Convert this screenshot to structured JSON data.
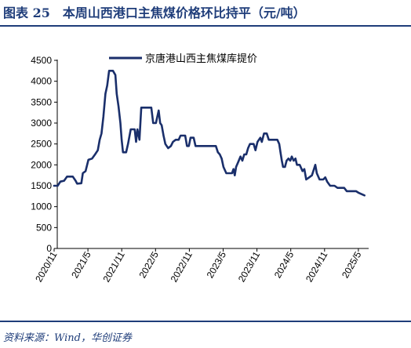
{
  "header": {
    "title": "图表 25　本周山西港口主焦煤价格环比持平（元/吨）"
  },
  "footer": {
    "source": "资料来源：Wind，华创证券"
  },
  "chart_data": {
    "type": "line",
    "legend_position": "top",
    "grid": false,
    "ylim": [
      0,
      4500
    ],
    "yticks": [
      "0",
      "500",
      "1000",
      "1500",
      "2000",
      "2500",
      "3000",
      "3500",
      "4000",
      "4500"
    ],
    "xticks": [
      "2020/11",
      "2021/5",
      "2021/11",
      "2022/5",
      "2022/11",
      "2023/5",
      "2023/11",
      "2024/5",
      "2024/11",
      "2025/5"
    ],
    "xlim": [
      "2020-11-01",
      "2025-06-15"
    ],
    "color": "#1a2f6b",
    "series": [
      {
        "name": "京唐港山西主焦煤库提价",
        "points": [
          [
            "2020-11-01",
            1500
          ],
          [
            "2020-11-20",
            1500
          ],
          [
            "2020-12-05",
            1600
          ],
          [
            "2020-12-25",
            1620
          ],
          [
            "2021-01-10",
            1720
          ],
          [
            "2021-02-10",
            1720
          ],
          [
            "2021-02-25",
            1620
          ],
          [
            "2021-03-05",
            1550
          ],
          [
            "2021-03-28",
            1560
          ],
          [
            "2021-04-05",
            1800
          ],
          [
            "2021-04-20",
            1850
          ],
          [
            "2021-05-05",
            2120
          ],
          [
            "2021-05-25",
            2150
          ],
          [
            "2021-06-10",
            2250
          ],
          [
            "2021-06-25",
            2350
          ],
          [
            "2021-07-05",
            2600
          ],
          [
            "2021-07-15",
            2750
          ],
          [
            "2021-07-25",
            3150
          ],
          [
            "2021-08-05",
            3700
          ],
          [
            "2021-08-15",
            3900
          ],
          [
            "2021-08-25",
            4250
          ],
          [
            "2021-09-15",
            4250
          ],
          [
            "2021-09-28",
            4150
          ],
          [
            "2021-10-05",
            3700
          ],
          [
            "2021-10-15",
            3400
          ],
          [
            "2021-10-25",
            3000
          ],
          [
            "2021-11-01",
            2600
          ],
          [
            "2021-11-08",
            2300
          ],
          [
            "2021-11-25",
            2300
          ],
          [
            "2021-12-05",
            2500
          ],
          [
            "2021-12-20",
            2850
          ],
          [
            "2022-01-10",
            2850
          ],
          [
            "2022-01-18",
            2550
          ],
          [
            "2022-01-25",
            2850
          ],
          [
            "2022-02-05",
            2600
          ],
          [
            "2022-02-15",
            3370
          ],
          [
            "2022-04-10",
            3370
          ],
          [
            "2022-04-20",
            3000
          ],
          [
            "2022-05-05",
            3000
          ],
          [
            "2022-05-20",
            3300
          ],
          [
            "2022-05-28",
            3000
          ],
          [
            "2022-06-05",
            2950
          ],
          [
            "2022-06-15",
            2700
          ],
          [
            "2022-06-25",
            2500
          ],
          [
            "2022-07-10",
            2400
          ],
          [
            "2022-07-25",
            2450
          ],
          [
            "2022-08-05",
            2550
          ],
          [
            "2022-08-20",
            2600
          ],
          [
            "2022-09-05",
            2600
          ],
          [
            "2022-09-15",
            2700
          ],
          [
            "2022-10-10",
            2700
          ],
          [
            "2022-10-20",
            2450
          ],
          [
            "2022-10-30",
            2450
          ],
          [
            "2022-11-08",
            2650
          ],
          [
            "2022-11-25",
            2650
          ],
          [
            "2022-12-05",
            2450
          ],
          [
            "2023-03-25",
            2450
          ],
          [
            "2023-04-05",
            2300
          ],
          [
            "2023-04-15",
            2250
          ],
          [
            "2023-04-25",
            2150
          ],
          [
            "2023-05-05",
            1950
          ],
          [
            "2023-05-20",
            1800
          ],
          [
            "2023-06-20",
            1800
          ],
          [
            "2023-06-28",
            1900
          ],
          [
            "2023-07-05",
            1750
          ],
          [
            "2023-07-12",
            1950
          ],
          [
            "2023-07-22",
            2050
          ],
          [
            "2023-08-05",
            2200
          ],
          [
            "2023-08-15",
            2100
          ],
          [
            "2023-08-25",
            2250
          ],
          [
            "2023-09-05",
            2250
          ],
          [
            "2023-09-15",
            2400
          ],
          [
            "2023-09-25",
            2500
          ],
          [
            "2023-10-15",
            2500
          ],
          [
            "2023-10-25",
            2350
          ],
          [
            "2023-11-05",
            2550
          ],
          [
            "2023-11-20",
            2650
          ],
          [
            "2023-11-28",
            2550
          ],
          [
            "2023-12-10",
            2750
          ],
          [
            "2023-12-25",
            2750
          ],
          [
            "2024-01-05",
            2600
          ],
          [
            "2024-02-20",
            2600
          ],
          [
            "2024-03-01",
            2500
          ],
          [
            "2024-03-08",
            2300
          ],
          [
            "2024-03-15",
            2100
          ],
          [
            "2024-03-22",
            1950
          ],
          [
            "2024-04-01",
            1950
          ],
          [
            "2024-04-10",
            2100
          ],
          [
            "2024-04-20",
            2150
          ],
          [
            "2024-04-30",
            2100
          ],
          [
            "2024-05-08",
            2200
          ],
          [
            "2024-05-18",
            2100
          ],
          [
            "2024-05-28",
            2150
          ],
          [
            "2024-06-05",
            2000
          ],
          [
            "2024-06-20",
            2000
          ],
          [
            "2024-07-05",
            1850
          ],
          [
            "2024-07-15",
            1900
          ],
          [
            "2024-07-25",
            1650
          ],
          [
            "2024-08-10",
            1700
          ],
          [
            "2024-08-25",
            1750
          ],
          [
            "2024-09-05",
            1900
          ],
          [
            "2024-09-12",
            2000
          ],
          [
            "2024-09-20",
            1800
          ],
          [
            "2024-10-05",
            1650
          ],
          [
            "2024-10-25",
            1650
          ],
          [
            "2024-11-05",
            1700
          ],
          [
            "2024-11-15",
            1600
          ],
          [
            "2024-12-01",
            1500
          ],
          [
            "2024-12-25",
            1500
          ],
          [
            "2025-01-10",
            1450
          ],
          [
            "2025-02-15",
            1450
          ],
          [
            "2025-03-01",
            1370
          ],
          [
            "2025-04-20",
            1370
          ],
          [
            "2025-05-05",
            1330
          ],
          [
            "2025-05-20",
            1300
          ],
          [
            "2025-06-05",
            1270
          ]
        ]
      }
    ]
  }
}
